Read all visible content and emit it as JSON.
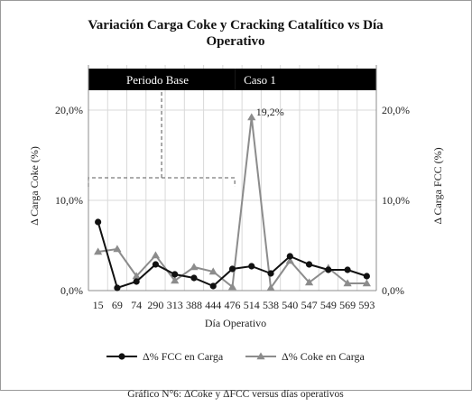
{
  "chart_data": {
    "type": "line",
    "title": "Variación  Carga Coke y Cracking  Catalítico vs Día",
    "title_line2": "Operativo",
    "xlabel": "Día Operativo",
    "ylabel_left": "Δ  Carga Coke (%)",
    "ylabel_right": "Δ  Carga FCC (%)",
    "ylim": [
      0,
      25
    ],
    "yticks": [
      0,
      10,
      20
    ],
    "ytick_labels": [
      "0,0%",
      "10,0%",
      "20,0%"
    ],
    "categories": [
      "15",
      "69",
      "74",
      "290",
      "313",
      "388",
      "444",
      "476",
      "514",
      "538",
      "540",
      "547",
      "549",
      "569",
      "593"
    ],
    "series": [
      {
        "name": "Δ% FCC en Carga",
        "marker": "circle",
        "color": "#111111",
        "values": [
          7.6,
          0.3,
          1.0,
          2.9,
          1.8,
          1.4,
          0.5,
          2.4,
          2.7,
          1.9,
          3.8,
          2.9,
          2.3,
          2.3,
          1.6
        ]
      },
      {
        "name": "Δ% Coke en Carga",
        "marker": "triangle",
        "color": "#8c8c8c",
        "values": [
          4.3,
          4.6,
          1.6,
          3.9,
          1.1,
          2.6,
          2.1,
          0.4,
          19.2,
          0.3,
          3.3,
          0.9,
          2.5,
          0.8,
          0.8
        ]
      }
    ],
    "bands": [
      {
        "label": "Periodo Base",
        "from_index": 0,
        "to_index": 7
      },
      {
        "label": "Caso 1",
        "from_index": 8,
        "to_index": 14
      }
    ],
    "peak_label": "19,2%",
    "peak_series": 1,
    "peak_index": 8,
    "grid": true,
    "legend_position": "bottom"
  },
  "caption": "Gráfico N°6: ΔCoke y ΔFCC versus días operativos",
  "colors": {
    "band": "#000000",
    "grid": "#d9d9d9",
    "axis": "#8c8c8c",
    "bracket": "#7a7a7a"
  }
}
